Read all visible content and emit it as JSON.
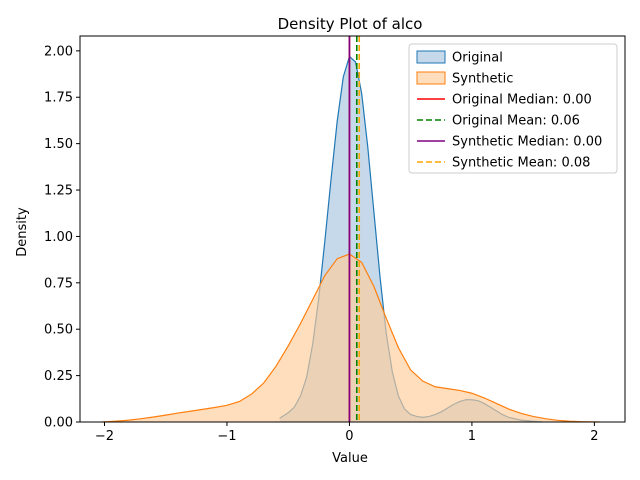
{
  "chart_data": {
    "type": "area",
    "title": "Density Plot of alco",
    "xlabel": "Value",
    "ylabel": "Density",
    "xlim": [
      -2.2,
      2.25
    ],
    "ylim": [
      0,
      2.08
    ],
    "x_ticks": [
      -2,
      -1,
      0,
      1,
      2
    ],
    "x_tick_labels": [
      "−2",
      "−1",
      "0",
      "1",
      "2"
    ],
    "y_ticks": [
      0,
      0.25,
      0.5,
      0.75,
      1.0,
      1.25,
      1.5,
      1.75,
      2.0
    ],
    "y_tick_labels": [
      "0.00",
      "0.25",
      "0.50",
      "0.75",
      "1.00",
      "1.25",
      "1.50",
      "1.75",
      "2.00"
    ],
    "grid": false,
    "legend_position": "top-right",
    "series": [
      {
        "name": "Original",
        "kind": "density",
        "color": "#1f77b4",
        "fill": "#a6c4e0",
        "x": [
          -0.57,
          -0.5,
          -0.45,
          -0.4,
          -0.35,
          -0.3,
          -0.25,
          -0.2,
          -0.15,
          -0.1,
          -0.05,
          0.0,
          0.05,
          0.1,
          0.15,
          0.2,
          0.25,
          0.3,
          0.35,
          0.4,
          0.45,
          0.5,
          0.55,
          0.6,
          0.65,
          0.7,
          0.75,
          0.8,
          0.85,
          0.9,
          0.95,
          1.0,
          1.05,
          1.1,
          1.15,
          1.2,
          1.25,
          1.3,
          1.4,
          1.5,
          1.57
        ],
        "y": [
          0.02,
          0.05,
          0.08,
          0.14,
          0.24,
          0.42,
          0.67,
          0.98,
          1.31,
          1.62,
          1.86,
          1.97,
          1.94,
          1.77,
          1.48,
          1.13,
          0.78,
          0.48,
          0.27,
          0.14,
          0.07,
          0.04,
          0.03,
          0.025,
          0.03,
          0.04,
          0.055,
          0.075,
          0.095,
          0.11,
          0.12,
          0.12,
          0.115,
          0.1,
          0.08,
          0.06,
          0.04,
          0.025,
          0.01,
          0.004,
          0.0
        ]
      },
      {
        "name": "Synthetic",
        "kind": "density",
        "color": "#ff7f0e",
        "fill": "#ffcc99",
        "x": [
          -2.02,
          -1.9,
          -1.8,
          -1.7,
          -1.6,
          -1.5,
          -1.4,
          -1.3,
          -1.2,
          -1.1,
          -1.0,
          -0.9,
          -0.8,
          -0.7,
          -0.6,
          -0.5,
          -0.4,
          -0.3,
          -0.2,
          -0.1,
          0.0,
          0.1,
          0.2,
          0.3,
          0.4,
          0.5,
          0.6,
          0.7,
          0.8,
          0.9,
          1.0,
          1.1,
          1.2,
          1.3,
          1.4,
          1.5,
          1.6,
          1.7,
          1.8,
          1.9,
          2.04
        ],
        "y": [
          0.0,
          0.005,
          0.01,
          0.018,
          0.027,
          0.037,
          0.048,
          0.058,
          0.068,
          0.078,
          0.09,
          0.11,
          0.15,
          0.21,
          0.3,
          0.41,
          0.53,
          0.66,
          0.79,
          0.88,
          0.905,
          0.86,
          0.73,
          0.56,
          0.4,
          0.28,
          0.22,
          0.19,
          0.18,
          0.17,
          0.155,
          0.13,
          0.1,
          0.07,
          0.047,
          0.03,
          0.018,
          0.009,
          0.004,
          0.0015,
          0.0
        ]
      }
    ],
    "reference_lines": [
      {
        "name": "Original Median: 0.00",
        "x": 0.0,
        "color": "#ff0000",
        "style": "solid"
      },
      {
        "name": "Original Mean: 0.06",
        "x": 0.06,
        "color": "#008000",
        "style": "dashed"
      },
      {
        "name": "Synthetic Median: 0.00",
        "x": 0.0,
        "color": "#800080",
        "style": "solid"
      },
      {
        "name": "Synthetic Mean: 0.08",
        "x": 0.08,
        "color": "#ffa500",
        "style": "dashed"
      }
    ]
  }
}
